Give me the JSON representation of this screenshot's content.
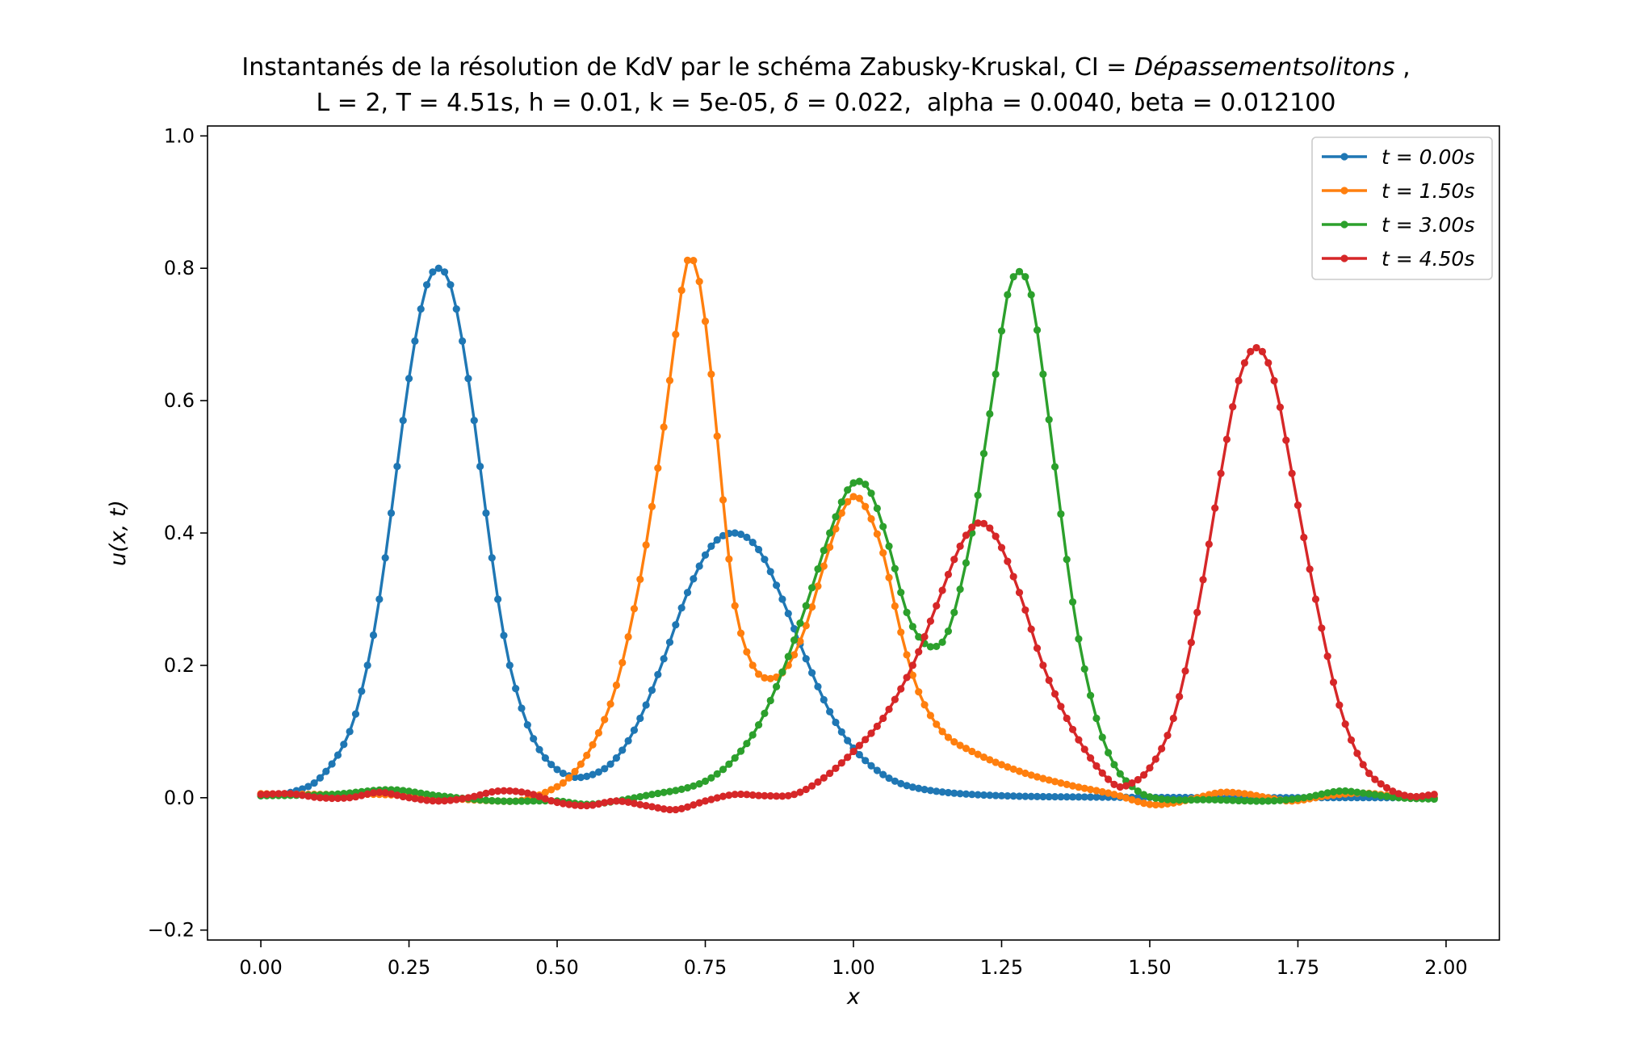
{
  "chart_data": {
    "type": "line",
    "title_line1_prefix": "Instantanés de la résolution de KdV par le schéma Zabusky-Kruskal, CI = ",
    "title_line1_ci": "Dépassementsolitons",
    "title_line1_suffix": " ,",
    "title_line2_a": "L = 2, T = 4.51s, h = 0.01, k = 5e-05, ",
    "title_line2_delta": "δ",
    "title_line2_b": " = 0.022,  alpha = 0.0040, beta = 0.012100",
    "xlabel": "x",
    "ylabel": "u(x, t)",
    "xlim": [
      -0.09,
      2.09
    ],
    "ylim": [
      -0.215,
      1.015
    ],
    "xticks": [
      0.0,
      0.25,
      0.5,
      0.75,
      1.0,
      1.25,
      1.5,
      1.75,
      2.0
    ],
    "xtick_labels": [
      "0.00",
      "0.25",
      "0.50",
      "0.75",
      "1.00",
      "1.25",
      "1.50",
      "1.75",
      "2.00"
    ],
    "yticks": [
      -0.2,
      0.0,
      0.2,
      0.4,
      0.6,
      0.8,
      1.0
    ],
    "ytick_labels": [
      "−0.2",
      "0.0",
      "0.2",
      "0.4",
      "0.6",
      "0.8",
      "1.0"
    ],
    "legend_position": "top-right",
    "grid": false,
    "x_start": 0.0,
    "x_step": 0.01,
    "x_end": 1.98,
    "series": [
      {
        "name": "t = 0.00s",
        "legend_t": "t",
        "legend_value": " = 0.00s",
        "color": "#1f77b4",
        "anchors": [
          [
            0.0,
            0.003
          ],
          [
            0.05,
            0.008
          ],
          [
            0.1,
            0.03
          ],
          [
            0.15,
            0.1
          ],
          [
            0.18,
            0.2
          ],
          [
            0.2,
            0.3
          ],
          [
            0.22,
            0.43
          ],
          [
            0.24,
            0.57
          ],
          [
            0.26,
            0.69
          ],
          [
            0.28,
            0.775
          ],
          [
            0.3,
            0.8
          ],
          [
            0.32,
            0.775
          ],
          [
            0.34,
            0.69
          ],
          [
            0.36,
            0.57
          ],
          [
            0.38,
            0.43
          ],
          [
            0.4,
            0.3
          ],
          [
            0.42,
            0.2
          ],
          [
            0.45,
            0.11
          ],
          [
            0.48,
            0.06
          ],
          [
            0.52,
            0.033
          ],
          [
            0.56,
            0.035
          ],
          [
            0.6,
            0.06
          ],
          [
            0.64,
            0.12
          ],
          [
            0.68,
            0.21
          ],
          [
            0.72,
            0.31
          ],
          [
            0.76,
            0.38
          ],
          [
            0.8,
            0.4
          ],
          [
            0.84,
            0.375
          ],
          [
            0.88,
            0.3
          ],
          [
            0.92,
            0.21
          ],
          [
            0.96,
            0.13
          ],
          [
            1.0,
            0.075
          ],
          [
            1.05,
            0.035
          ],
          [
            1.1,
            0.016
          ],
          [
            1.2,
            0.005
          ],
          [
            1.4,
            0.001
          ],
          [
            1.98,
            0.0
          ]
        ]
      },
      {
        "name": "t = 1.50s",
        "legend_t": "t",
        "legend_value": " = 1.50s",
        "color": "#ff7f0e",
        "anchors": [
          [
            0.0,
            0.006
          ],
          [
            0.1,
            0.005
          ],
          [
            0.2,
            0.005
          ],
          [
            0.3,
            0.0
          ],
          [
            0.4,
            -0.005
          ],
          [
            0.44,
            -0.004
          ],
          [
            0.48,
            0.008
          ],
          [
            0.52,
            0.03
          ],
          [
            0.56,
            0.08
          ],
          [
            0.6,
            0.17
          ],
          [
            0.64,
            0.33
          ],
          [
            0.66,
            0.44
          ],
          [
            0.68,
            0.56
          ],
          [
            0.7,
            0.7
          ],
          [
            0.72,
            0.812
          ],
          [
            0.74,
            0.78
          ],
          [
            0.76,
            0.64
          ],
          [
            0.78,
            0.45
          ],
          [
            0.8,
            0.29
          ],
          [
            0.83,
            0.2
          ],
          [
            0.86,
            0.18
          ],
          [
            0.89,
            0.2
          ],
          [
            0.92,
            0.26
          ],
          [
            0.95,
            0.35
          ],
          [
            0.98,
            0.43
          ],
          [
            1.0,
            0.455
          ],
          [
            1.02,
            0.44
          ],
          [
            1.05,
            0.37
          ],
          [
            1.08,
            0.25
          ],
          [
            1.11,
            0.16
          ],
          [
            1.15,
            0.1
          ],
          [
            1.2,
            0.07
          ],
          [
            1.28,
            0.04
          ],
          [
            1.36,
            0.02
          ],
          [
            1.44,
            0.005
          ],
          [
            1.5,
            -0.01
          ],
          [
            1.54,
            -0.008
          ],
          [
            1.58,
            0.0
          ],
          [
            1.62,
            0.008
          ],
          [
            1.66,
            0.006
          ],
          [
            1.7,
            0.0
          ],
          [
            1.74,
            -0.005
          ],
          [
            1.8,
            0.003
          ],
          [
            1.86,
            0.007
          ],
          [
            1.92,
            0.002
          ],
          [
            1.98,
            0.0
          ]
        ]
      },
      {
        "name": "t = 3.00s",
        "legend_t": "t",
        "legend_value": " = 3.00s",
        "color": "#2ca02c",
        "anchors": [
          [
            0.0,
            0.003
          ],
          [
            0.12,
            0.005
          ],
          [
            0.22,
            0.012
          ],
          [
            0.3,
            0.003
          ],
          [
            0.4,
            -0.005
          ],
          [
            0.5,
            -0.005
          ],
          [
            0.55,
            -0.01
          ],
          [
            0.6,
            -0.005
          ],
          [
            0.66,
            0.005
          ],
          [
            0.72,
            0.015
          ],
          [
            0.76,
            0.03
          ],
          [
            0.8,
            0.06
          ],
          [
            0.84,
            0.11
          ],
          [
            0.88,
            0.19
          ],
          [
            0.92,
            0.29
          ],
          [
            0.96,
            0.4
          ],
          [
            0.99,
            0.465
          ],
          [
            1.01,
            0.478
          ],
          [
            1.03,
            0.46
          ],
          [
            1.06,
            0.38
          ],
          [
            1.09,
            0.28
          ],
          [
            1.12,
            0.233
          ],
          [
            1.15,
            0.235
          ],
          [
            1.17,
            0.28
          ],
          [
            1.2,
            0.4
          ],
          [
            1.22,
            0.52
          ],
          [
            1.24,
            0.64
          ],
          [
            1.26,
            0.76
          ],
          [
            1.28,
            0.795
          ],
          [
            1.3,
            0.76
          ],
          [
            1.32,
            0.64
          ],
          [
            1.34,
            0.5
          ],
          [
            1.36,
            0.36
          ],
          [
            1.38,
            0.24
          ],
          [
            1.41,
            0.12
          ],
          [
            1.44,
            0.05
          ],
          [
            1.48,
            0.01
          ],
          [
            1.52,
            -0.002
          ],
          [
            1.6,
            -0.003
          ],
          [
            1.7,
            -0.005
          ],
          [
            1.76,
            0.0
          ],
          [
            1.82,
            0.01
          ],
          [
            1.86,
            0.007
          ],
          [
            1.92,
            0.0
          ],
          [
            1.98,
            -0.002
          ]
        ]
      },
      {
        "name": "t = 4.50s",
        "legend_t": "t",
        "legend_value": " = 4.50s",
        "color": "#d62728",
        "anchors": [
          [
            0.0,
            0.005
          ],
          [
            0.05,
            0.006
          ],
          [
            0.1,
            0.0
          ],
          [
            0.15,
            0.0
          ],
          [
            0.2,
            0.008
          ],
          [
            0.25,
            0.0
          ],
          [
            0.3,
            -0.005
          ],
          [
            0.35,
            0.0
          ],
          [
            0.4,
            0.01
          ],
          [
            0.45,
            0.007
          ],
          [
            0.5,
            -0.007
          ],
          [
            0.55,
            -0.012
          ],
          [
            0.6,
            -0.005
          ],
          [
            0.65,
            -0.012
          ],
          [
            0.7,
            -0.018
          ],
          [
            0.75,
            -0.005
          ],
          [
            0.8,
            0.005
          ],
          [
            0.85,
            0.003
          ],
          [
            0.9,
            0.005
          ],
          [
            0.95,
            0.03
          ],
          [
            1.0,
            0.07
          ],
          [
            1.05,
            0.12
          ],
          [
            1.1,
            0.2
          ],
          [
            1.14,
            0.29
          ],
          [
            1.18,
            0.38
          ],
          [
            1.21,
            0.415
          ],
          [
            1.24,
            0.395
          ],
          [
            1.28,
            0.31
          ],
          [
            1.32,
            0.2
          ],
          [
            1.36,
            0.12
          ],
          [
            1.4,
            0.06
          ],
          [
            1.44,
            0.02
          ],
          [
            1.46,
            0.018
          ],
          [
            1.5,
            0.045
          ],
          [
            1.54,
            0.12
          ],
          [
            1.58,
            0.28
          ],
          [
            1.62,
            0.49
          ],
          [
            1.65,
            0.63
          ],
          [
            1.68,
            0.68
          ],
          [
            1.71,
            0.63
          ],
          [
            1.74,
            0.49
          ],
          [
            1.78,
            0.3
          ],
          [
            1.82,
            0.14
          ],
          [
            1.86,
            0.05
          ],
          [
            1.9,
            0.015
          ],
          [
            1.94,
            0.002
          ],
          [
            1.98,
            0.005
          ]
        ]
      }
    ]
  }
}
